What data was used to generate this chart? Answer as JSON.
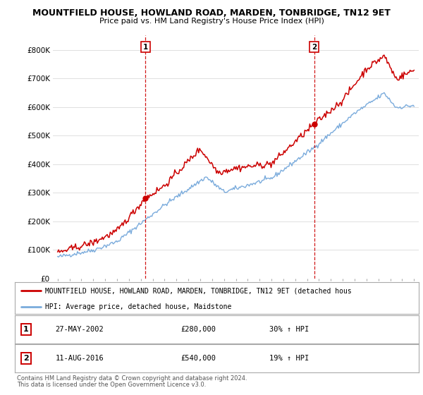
{
  "title": "MOUNTFIELD HOUSE, HOWLAND ROAD, MARDEN, TONBRIDGE, TN12 9ET",
  "subtitle": "Price paid vs. HM Land Registry's House Price Index (HPI)",
  "ylim": [
    0,
    850000
  ],
  "yticks": [
    0,
    100000,
    200000,
    300000,
    400000,
    500000,
    600000,
    700000,
    800000
  ],
  "ytick_labels": [
    "£0",
    "£100K",
    "£200K",
    "£300K",
    "£400K",
    "£500K",
    "£600K",
    "£700K",
    "£800K"
  ],
  "sale1_date": 2002.4,
  "sale1_price": 280000,
  "sale1_label": "27-MAY-2002",
  "sale1_hpi": "30% ↑ HPI",
  "sale2_date": 2016.6,
  "sale2_price": 540000,
  "sale2_label": "11-AUG-2016",
  "sale2_hpi": "19% ↑ HPI",
  "line_color_price": "#cc0000",
  "line_color_hpi": "#7aabdc",
  "legend_label_price": "MOUNTFIELD HOUSE, HOWLAND ROAD, MARDEN, TONBRIDGE, TN12 9ET (detached hous",
  "legend_label_hpi": "HPI: Average price, detached house, Maidstone",
  "footer1": "Contains HM Land Registry data © Crown copyright and database right 2024.",
  "footer2": "This data is licensed under the Open Government Licence v3.0.",
  "background_color": "#ffffff",
  "plot_bg_color": "#ffffff",
  "grid_color": "#e0e0e0"
}
